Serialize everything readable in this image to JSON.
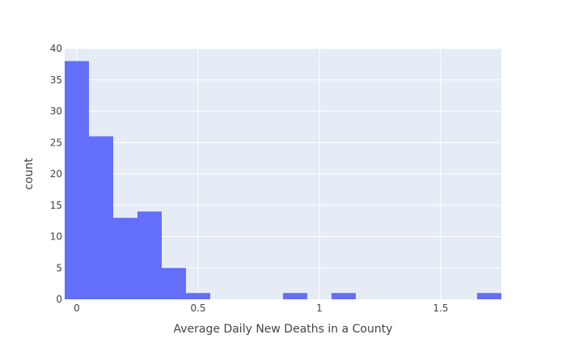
{
  "chart_data": {
    "type": "bar",
    "title": "",
    "xlabel": "Average Daily New Deaths in a County",
    "ylabel": "count",
    "bin_width": 0.1,
    "bins": [
      {
        "start": -0.05,
        "end": 0.05,
        "count": 38
      },
      {
        "start": 0.05,
        "end": 0.15,
        "count": 26
      },
      {
        "start": 0.15,
        "end": 0.25,
        "count": 13
      },
      {
        "start": 0.25,
        "end": 0.35,
        "count": 14
      },
      {
        "start": 0.35,
        "end": 0.45,
        "count": 5
      },
      {
        "start": 0.45,
        "end": 0.55,
        "count": 1
      },
      {
        "start": 0.85,
        "end": 0.95,
        "count": 1
      },
      {
        "start": 1.05,
        "end": 1.15,
        "count": 1
      },
      {
        "start": 1.65,
        "end": 1.75,
        "count": 1
      }
    ],
    "xlim": [
      -0.05,
      1.75
    ],
    "ylim": [
      0,
      40
    ],
    "x_ticks": [
      {
        "value": 0,
        "label": "0"
      },
      {
        "value": 0.5,
        "label": "0.5"
      },
      {
        "value": 1,
        "label": "1"
      },
      {
        "value": 1.5,
        "label": "1.5"
      }
    ],
    "y_ticks": [
      {
        "value": 0,
        "label": "0"
      },
      {
        "value": 5,
        "label": "5"
      },
      {
        "value": 10,
        "label": "10"
      },
      {
        "value": 15,
        "label": "15"
      },
      {
        "value": 20,
        "label": "20"
      },
      {
        "value": 25,
        "label": "25"
      },
      {
        "value": 30,
        "label": "30"
      },
      {
        "value": 35,
        "label": "35"
      },
      {
        "value": 40,
        "label": "40"
      }
    ],
    "grid": true,
    "colors": {
      "bar": "#636efa",
      "plot_background": "#e5ecf6",
      "grid": "#ffffff"
    }
  }
}
